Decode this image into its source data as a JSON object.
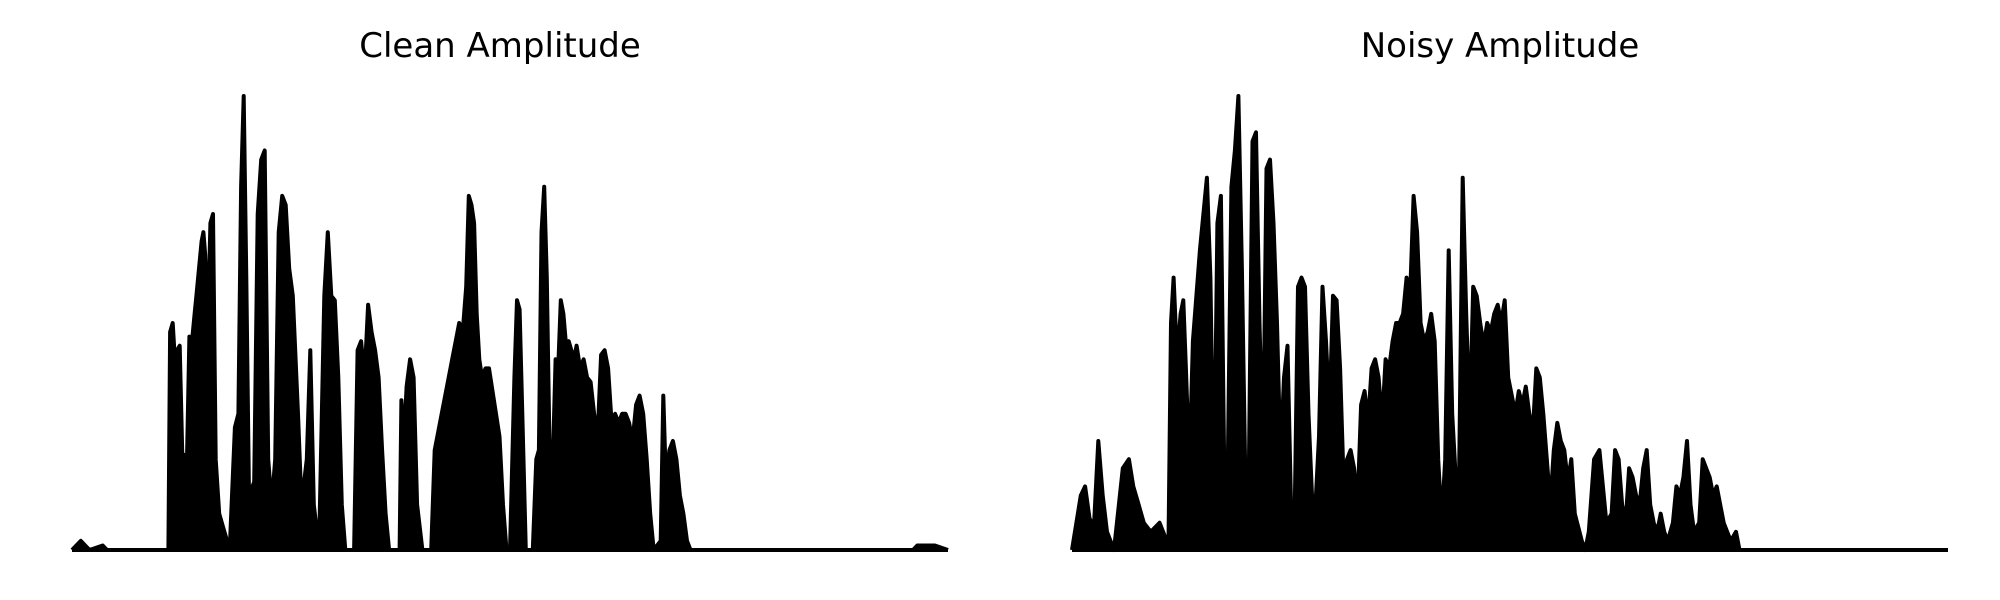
{
  "chart_data": [
    {
      "type": "area",
      "title": "Clean Amplitude",
      "xlabel": "",
      "ylabel": "",
      "axes_visible": false,
      "grid": false,
      "x_range": [
        0,
        1
      ],
      "ylim": [
        0,
        1
      ],
      "color": "#000000",
      "envelope": [
        [
          0.0,
          0.0
        ],
        [
          0.01,
          0.02
        ],
        [
          0.02,
          0.0
        ],
        [
          0.035,
          0.01
        ],
        [
          0.04,
          0.0
        ],
        [
          0.06,
          0.0
        ],
        [
          0.1,
          0.0
        ],
        [
          0.11,
          0.0
        ],
        [
          0.112,
          0.48
        ],
        [
          0.115,
          0.5
        ],
        [
          0.118,
          0.4
        ],
        [
          0.12,
          0.44
        ],
        [
          0.123,
          0.45
        ],
        [
          0.126,
          0.2
        ],
        [
          0.128,
          0.21
        ],
        [
          0.13,
          0.08
        ],
        [
          0.134,
          0.47
        ],
        [
          0.137,
          0.46
        ],
        [
          0.14,
          0.52
        ],
        [
          0.142,
          0.56
        ],
        [
          0.145,
          0.62
        ],
        [
          0.148,
          0.68
        ],
        [
          0.15,
          0.7
        ],
        [
          0.152,
          0.65
        ],
        [
          0.155,
          0.48
        ],
        [
          0.158,
          0.72
        ],
        [
          0.161,
          0.74
        ],
        [
          0.164,
          0.2
        ],
        [
          0.168,
          0.08
        ],
        [
          0.18,
          0.0
        ],
        [
          0.186,
          0.27
        ],
        [
          0.19,
          0.3
        ],
        [
          0.193,
          0.8
        ],
        [
          0.196,
          1.0
        ],
        [
          0.199,
          0.6
        ],
        [
          0.202,
          0.12
        ],
        [
          0.208,
          0.15
        ],
        [
          0.212,
          0.74
        ],
        [
          0.216,
          0.86
        ],
        [
          0.22,
          0.88
        ],
        [
          0.224,
          0.2
        ],
        [
          0.228,
          0.1
        ],
        [
          0.232,
          0.2
        ],
        [
          0.236,
          0.7
        ],
        [
          0.24,
          0.78
        ],
        [
          0.244,
          0.76
        ],
        [
          0.248,
          0.62
        ],
        [
          0.252,
          0.56
        ],
        [
          0.258,
          0.3
        ],
        [
          0.262,
          0.1
        ],
        [
          0.268,
          0.2
        ],
        [
          0.272,
          0.44
        ],
        [
          0.276,
          0.1
        ],
        [
          0.282,
          0.0
        ],
        [
          0.288,
          0.56
        ],
        [
          0.292,
          0.7
        ],
        [
          0.296,
          0.56
        ],
        [
          0.3,
          0.55
        ],
        [
          0.304,
          0.38
        ],
        [
          0.308,
          0.1
        ],
        [
          0.312,
          0.0
        ],
        [
          0.322,
          0.0
        ],
        [
          0.326,
          0.44
        ],
        [
          0.33,
          0.46
        ],
        [
          0.334,
          0.38
        ],
        [
          0.338,
          0.54
        ],
        [
          0.342,
          0.48
        ],
        [
          0.346,
          0.44
        ],
        [
          0.35,
          0.38
        ],
        [
          0.354,
          0.22
        ],
        [
          0.358,
          0.08
        ],
        [
          0.362,
          0.0
        ],
        [
          0.374,
          0.0
        ],
        [
          0.376,
          0.33
        ],
        [
          0.379,
          0.24
        ],
        [
          0.382,
          0.36
        ],
        [
          0.386,
          0.42
        ],
        [
          0.39,
          0.38
        ],
        [
          0.394,
          0.1
        ],
        [
          0.4,
          0.0
        ],
        [
          0.41,
          0.0
        ],
        [
          0.414,
          0.22
        ],
        [
          0.418,
          0.26
        ],
        [
          0.422,
          0.3
        ],
        [
          0.426,
          0.34
        ],
        [
          0.43,
          0.38
        ],
        [
          0.434,
          0.42
        ],
        [
          0.438,
          0.46
        ],
        [
          0.442,
          0.5
        ],
        [
          0.446,
          0.48
        ],
        [
          0.45,
          0.58
        ],
        [
          0.453,
          0.78
        ],
        [
          0.456,
          0.76
        ],
        [
          0.459,
          0.72
        ],
        [
          0.462,
          0.52
        ],
        [
          0.465,
          0.42
        ],
        [
          0.468,
          0.38
        ],
        [
          0.472,
          0.4
        ],
        [
          0.476,
          0.4
        ],
        [
          0.48,
          0.35
        ],
        [
          0.484,
          0.3
        ],
        [
          0.488,
          0.25
        ],
        [
          0.492,
          0.1
        ],
        [
          0.496,
          0.0
        ],
        [
          0.5,
          0.0
        ],
        [
          0.505,
          0.38
        ],
        [
          0.508,
          0.55
        ],
        [
          0.511,
          0.53
        ],
        [
          0.514,
          0.3
        ],
        [
          0.518,
          0.0
        ],
        [
          0.526,
          0.0
        ],
        [
          0.53,
          0.2
        ],
        [
          0.533,
          0.22
        ],
        [
          0.536,
          0.7
        ],
        [
          0.539,
          0.8
        ],
        [
          0.542,
          0.6
        ],
        [
          0.545,
          0.24
        ],
        [
          0.549,
          0.2
        ],
        [
          0.552,
          0.42
        ],
        [
          0.555,
          0.4
        ],
        [
          0.558,
          0.55
        ],
        [
          0.561,
          0.52
        ],
        [
          0.564,
          0.45
        ],
        [
          0.567,
          0.46
        ],
        [
          0.57,
          0.44
        ],
        [
          0.573,
          0.42
        ],
        [
          0.576,
          0.45
        ],
        [
          0.58,
          0.4
        ],
        [
          0.584,
          0.42
        ],
        [
          0.588,
          0.38
        ],
        [
          0.592,
          0.37
        ],
        [
          0.596,
          0.3
        ],
        [
          0.6,
          0.25
        ],
        [
          0.604,
          0.43
        ],
        [
          0.608,
          0.44
        ],
        [
          0.612,
          0.4
        ],
        [
          0.616,
          0.28
        ],
        [
          0.62,
          0.3
        ],
        [
          0.624,
          0.28
        ],
        [
          0.628,
          0.3
        ],
        [
          0.632,
          0.3
        ],
        [
          0.636,
          0.28
        ],
        [
          0.64,
          0.24
        ],
        [
          0.644,
          0.32
        ],
        [
          0.648,
          0.34
        ],
        [
          0.652,
          0.3
        ],
        [
          0.656,
          0.2
        ],
        [
          0.66,
          0.08
        ],
        [
          0.664,
          0.0
        ],
        [
          0.672,
          0.02
        ],
        [
          0.675,
          0.34
        ],
        [
          0.678,
          0.15
        ],
        [
          0.682,
          0.22
        ],
        [
          0.686,
          0.24
        ],
        [
          0.69,
          0.2
        ],
        [
          0.694,
          0.12
        ],
        [
          0.698,
          0.08
        ],
        [
          0.702,
          0.02
        ],
        [
          0.706,
          0.0
        ],
        [
          0.8,
          0.0
        ],
        [
          0.96,
          0.0
        ],
        [
          0.965,
          0.01
        ],
        [
          0.985,
          0.01
        ],
        [
          1.0,
          0.0
        ]
      ]
    },
    {
      "type": "area",
      "title": "Noisy Amplitude",
      "xlabel": "",
      "ylabel": "",
      "axes_visible": false,
      "grid": false,
      "x_range": [
        0,
        1
      ],
      "ylim": [
        0,
        1
      ],
      "color": "#000000",
      "envelope": [
        [
          0.0,
          0.0
        ],
        [
          0.01,
          0.12
        ],
        [
          0.015,
          0.14
        ],
        [
          0.02,
          0.07
        ],
        [
          0.025,
          0.05
        ],
        [
          0.03,
          0.24
        ],
        [
          0.035,
          0.12
        ],
        [
          0.04,
          0.04
        ],
        [
          0.048,
          0.0
        ],
        [
          0.058,
          0.18
        ],
        [
          0.065,
          0.2
        ],
        [
          0.07,
          0.14
        ],
        [
          0.076,
          0.1
        ],
        [
          0.082,
          0.06
        ],
        [
          0.09,
          0.04
        ],
        [
          0.1,
          0.06
        ],
        [
          0.106,
          0.03
        ],
        [
          0.11,
          0.0
        ],
        [
          0.113,
          0.5
        ],
        [
          0.116,
          0.6
        ],
        [
          0.12,
          0.42
        ],
        [
          0.124,
          0.52
        ],
        [
          0.127,
          0.55
        ],
        [
          0.13,
          0.4
        ],
        [
          0.134,
          0.18
        ],
        [
          0.138,
          0.46
        ],
        [
          0.142,
          0.56
        ],
        [
          0.146,
          0.66
        ],
        [
          0.15,
          0.74
        ],
        [
          0.154,
          0.82
        ],
        [
          0.158,
          0.6
        ],
        [
          0.162,
          0.1
        ],
        [
          0.166,
          0.72
        ],
        [
          0.17,
          0.78
        ],
        [
          0.174,
          0.15
        ],
        [
          0.178,
          0.2
        ],
        [
          0.182,
          0.8
        ],
        [
          0.186,
          0.88
        ],
        [
          0.19,
          1.0
        ],
        [
          0.194,
          0.62
        ],
        [
          0.198,
          0.15
        ],
        [
          0.202,
          0.2
        ],
        [
          0.206,
          0.9
        ],
        [
          0.21,
          0.92
        ],
        [
          0.214,
          0.5
        ],
        [
          0.218,
          0.2
        ],
        [
          0.222,
          0.84
        ],
        [
          0.226,
          0.86
        ],
        [
          0.23,
          0.72
        ],
        [
          0.234,
          0.5
        ],
        [
          0.238,
          0.2
        ],
        [
          0.242,
          0.38
        ],
        [
          0.246,
          0.45
        ],
        [
          0.25,
          0.1
        ],
        [
          0.254,
          0.05
        ],
        [
          0.258,
          0.58
        ],
        [
          0.262,
          0.6
        ],
        [
          0.266,
          0.58
        ],
        [
          0.27,
          0.3
        ],
        [
          0.274,
          0.12
        ],
        [
          0.278,
          0.1
        ],
        [
          0.282,
          0.25
        ],
        [
          0.286,
          0.58
        ],
        [
          0.29,
          0.46
        ],
        [
          0.294,
          0.3
        ],
        [
          0.298,
          0.56
        ],
        [
          0.302,
          0.55
        ],
        [
          0.306,
          0.4
        ],
        [
          0.31,
          0.15
        ],
        [
          0.314,
          0.2
        ],
        [
          0.318,
          0.22
        ],
        [
          0.322,
          0.18
        ],
        [
          0.326,
          0.1
        ],
        [
          0.33,
          0.32
        ],
        [
          0.334,
          0.35
        ],
        [
          0.338,
          0.28
        ],
        [
          0.342,
          0.4
        ],
        [
          0.346,
          0.42
        ],
        [
          0.35,
          0.38
        ],
        [
          0.354,
          0.28
        ],
        [
          0.358,
          0.42
        ],
        [
          0.362,
          0.4
        ],
        [
          0.366,
          0.46
        ],
        [
          0.37,
          0.5
        ],
        [
          0.374,
          0.5
        ],
        [
          0.378,
          0.52
        ],
        [
          0.382,
          0.6
        ],
        [
          0.386,
          0.56
        ],
        [
          0.39,
          0.78
        ],
        [
          0.394,
          0.7
        ],
        [
          0.398,
          0.5
        ],
        [
          0.402,
          0.46
        ],
        [
          0.406,
          0.48
        ],
        [
          0.41,
          0.52
        ],
        [
          0.414,
          0.46
        ],
        [
          0.418,
          0.2
        ],
        [
          0.422,
          0.06
        ],
        [
          0.426,
          0.2
        ],
        [
          0.43,
          0.66
        ],
        [
          0.434,
          0.3
        ],
        [
          0.438,
          0.16
        ],
        [
          0.442,
          0.18
        ],
        [
          0.446,
          0.82
        ],
        [
          0.45,
          0.52
        ],
        [
          0.454,
          0.28
        ],
        [
          0.458,
          0.58
        ],
        [
          0.462,
          0.56
        ],
        [
          0.466,
          0.5
        ],
        [
          0.47,
          0.45
        ],
        [
          0.474,
          0.5
        ],
        [
          0.478,
          0.48
        ],
        [
          0.482,
          0.52
        ],
        [
          0.486,
          0.54
        ],
        [
          0.49,
          0.5
        ],
        [
          0.494,
          0.55
        ],
        [
          0.498,
          0.38
        ],
        [
          0.502,
          0.34
        ],
        [
          0.506,
          0.3
        ],
        [
          0.51,
          0.35
        ],
        [
          0.514,
          0.32
        ],
        [
          0.518,
          0.36
        ],
        [
          0.522,
          0.3
        ],
        [
          0.526,
          0.26
        ],
        [
          0.53,
          0.4
        ],
        [
          0.534,
          0.38
        ],
        [
          0.538,
          0.3
        ],
        [
          0.542,
          0.2
        ],
        [
          0.546,
          0.1
        ],
        [
          0.55,
          0.22
        ],
        [
          0.554,
          0.28
        ],
        [
          0.558,
          0.24
        ],
        [
          0.562,
          0.22
        ],
        [
          0.566,
          0.15
        ],
        [
          0.57,
          0.2
        ],
        [
          0.574,
          0.08
        ],
        [
          0.578,
          0.05
        ],
        [
          0.582,
          0.02
        ],
        [
          0.586,
          0.0
        ],
        [
          0.59,
          0.04
        ],
        [
          0.596,
          0.2
        ],
        [
          0.602,
          0.22
        ],
        [
          0.606,
          0.14
        ],
        [
          0.61,
          0.06
        ],
        [
          0.616,
          0.08
        ],
        [
          0.62,
          0.22
        ],
        [
          0.624,
          0.2
        ],
        [
          0.628,
          0.1
        ],
        [
          0.632,
          0.06
        ],
        [
          0.636,
          0.18
        ],
        [
          0.64,
          0.16
        ],
        [
          0.644,
          0.12
        ],
        [
          0.648,
          0.1
        ],
        [
          0.652,
          0.18
        ],
        [
          0.656,
          0.22
        ],
        [
          0.66,
          0.1
        ],
        [
          0.664,
          0.06
        ],
        [
          0.668,
          0.04
        ],
        [
          0.672,
          0.08
        ],
        [
          0.676,
          0.04
        ],
        [
          0.68,
          0.02
        ],
        [
          0.686,
          0.06
        ],
        [
          0.69,
          0.14
        ],
        [
          0.694,
          0.12
        ],
        [
          0.698,
          0.16
        ],
        [
          0.702,
          0.24
        ],
        [
          0.706,
          0.1
        ],
        [
          0.71,
          0.04
        ],
        [
          0.716,
          0.06
        ],
        [
          0.72,
          0.2
        ],
        [
          0.724,
          0.18
        ],
        [
          0.728,
          0.16
        ],
        [
          0.732,
          0.12
        ],
        [
          0.736,
          0.14
        ],
        [
          0.74,
          0.1
        ],
        [
          0.744,
          0.06
        ],
        [
          0.748,
          0.04
        ],
        [
          0.752,
          0.02
        ],
        [
          0.758,
          0.04
        ],
        [
          0.762,
          0.0
        ],
        [
          0.77,
          0.0
        ],
        [
          0.8,
          0.0
        ],
        [
          0.83,
          0.0
        ],
        [
          0.86,
          0.0
        ],
        [
          0.9,
          0.0
        ],
        [
          0.94,
          0.0
        ],
        [
          1.0,
          0.0
        ]
      ]
    }
  ]
}
